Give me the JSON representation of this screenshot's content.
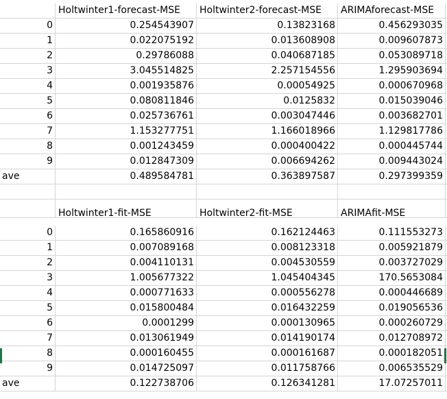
{
  "table1": {
    "headers": [
      "",
      "Holtwinter1-forecast-MSE",
      "Holtwinter2-forecast-MSE",
      "ARIMAforecast-MSE"
    ],
    "rows": [
      [
        "0",
        "0.254543907",
        "0.13823168",
        "0.456293035"
      ],
      [
        "1",
        "0.022075192",
        "0.013608908",
        "0.009607873"
      ],
      [
        "2",
        "0.29786088",
        "0.040687185",
        "0.053089718"
      ],
      [
        "3",
        "3.045514825",
        "2.257154556",
        "1.295903694"
      ],
      [
        "4",
        "0.001935876",
        "0.00054925",
        "0.000670968"
      ],
      [
        "5",
        "0.080811846",
        "0.0125832",
        "0.015039046"
      ],
      [
        "6",
        "0.025736761",
        "0.003047446",
        "0.003682701"
      ],
      [
        "7",
        "1.153277751",
        "1.166018966",
        "1.129817786"
      ],
      [
        "8",
        "0.001243459",
        "0.000400422",
        "0.000445744"
      ],
      [
        "9",
        "0.012847309",
        "0.006694262",
        "0.009443024"
      ]
    ],
    "ave": [
      "ave",
      "0.489584781",
      "0.363897587",
      "0.297399359"
    ]
  },
  "table2": {
    "headers": [
      "",
      "Holtwinter1-fit-MSE",
      "Holtwinter2-fit-MSE",
      "ARIMAfit-MSE"
    ],
    "rows": [
      [
        "0",
        "0.165860916",
        "0.162124463",
        "0.111553273"
      ],
      [
        "1",
        "0.007089168",
        "0.008123318",
        "0.005921879"
      ],
      [
        "2",
        "0.004110131",
        "0.004530559",
        "0.003727029"
      ],
      [
        "3",
        "1.005677322",
        "1.045404345",
        "170.5653084"
      ],
      [
        "4",
        "0.000771633",
        "0.000556278",
        "0.000446689"
      ],
      [
        "5",
        "0.015800484",
        "0.016432259",
        "0.019056536"
      ],
      [
        "6",
        "0.0001299",
        "0.000130965",
        "0.000260729"
      ],
      [
        "7",
        "0.013061949",
        "0.014190174",
        "0.012708972"
      ],
      [
        "8",
        "0.000160455",
        "0.000161687",
        "0.000182051"
      ],
      [
        "9",
        "0.014725097",
        "0.011758766",
        "0.006535529"
      ]
    ],
    "ave": [
      "ave",
      "0.122738706",
      "0.126341281",
      "17.07257011"
    ]
  },
  "colors": {
    "gridline": "#d4d4d4",
    "selection": "#217346"
  }
}
